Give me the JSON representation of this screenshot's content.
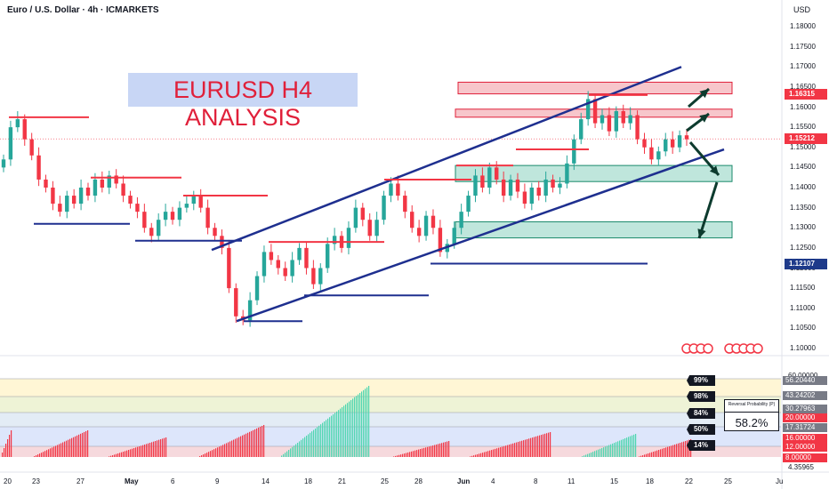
{
  "header": {
    "symbol_line": "Euro / U.S. Dollar · 4h · ICMARKETS",
    "currency": "USD"
  },
  "title": "EURUSD H4 ANALYSIS",
  "chart_data": {
    "type": "candlestick",
    "symbol": "EURUSD",
    "timeframe": "4h",
    "y_axis_ticks": [
      "1.18000",
      "1.17500",
      "1.17000",
      "1.16500",
      "1.16000",
      "1.15500",
      "1.15000",
      "1.14500",
      "1.14000",
      "1.13500",
      "1.13000",
      "1.12500",
      "1.12000",
      "1.11500",
      "1.11000",
      "1.10500",
      "1.10000"
    ],
    "ylim": [
      1.1,
      1.18
    ],
    "x_axis_ticks": [
      "20",
      "23",
      "27",
      "May",
      "6",
      "9",
      "14",
      "18",
      "21",
      "25",
      "28",
      "Jun",
      "4",
      "8",
      "11",
      "15",
      "18",
      "22",
      "25",
      "Ju"
    ],
    "price_tags": [
      {
        "value": "1.16315",
        "color": "#f23645"
      },
      {
        "value": "1.15212",
        "color": "#f23645"
      },
      {
        "value": "1.12107",
        "color": "#1e3a8a"
      }
    ],
    "close_series": [
      1.147,
      1.155,
      1.157,
      1.152,
      1.148,
      1.142,
      1.14,
      1.136,
      1.134,
      1.138,
      1.136,
      1.14,
      1.138,
      1.142,
      1.14,
      1.143,
      1.141,
      1.138,
      1.136,
      1.134,
      1.13,
      1.128,
      1.132,
      1.134,
      1.132,
      1.135,
      1.136,
      1.138,
      1.135,
      1.13,
      1.128,
      1.125,
      1.115,
      1.108,
      1.107,
      1.112,
      1.118,
      1.124,
      1.122,
      1.12,
      1.118,
      1.122,
      1.125,
      1.12,
      1.116,
      1.12,
      1.126,
      1.128,
      1.125,
      1.13,
      1.135,
      1.132,
      1.128,
      1.132,
      1.138,
      1.141,
      1.138,
      1.134,
      1.13,
      1.128,
      1.133,
      1.13,
      1.124,
      1.126,
      1.13,
      1.134,
      1.138,
      1.143,
      1.14,
      1.145,
      1.142,
      1.138,
      1.142,
      1.139,
      1.136,
      1.14,
      1.138,
      1.142,
      1.14,
      1.141,
      1.146,
      1.152,
      1.157,
      1.162,
      1.156,
      1.158,
      1.154,
      1.159,
      1.156,
      1.158,
      1.152,
      1.15,
      1.147,
      1.149,
      1.152,
      1.15,
      1.153,
      1.152
    ],
    "resistance_zones": [
      {
        "from": 1.1633,
        "to": 1.1662
      },
      {
        "from": 1.1575,
        "to": 1.1595
      }
    ],
    "support_zones": [
      {
        "from": 1.1415,
        "to": 1.1455
      },
      {
        "from": 1.1275,
        "to": 1.1315
      }
    ],
    "levels_red": [
      1.1575,
      1.1425,
      1.138,
      1.1265,
      1.142,
      1.1495,
      1.1455,
      1.163
    ],
    "levels_blue": [
      1.131,
      1.1268,
      1.1132,
      1.1068,
      1.1211
    ],
    "percent_labels": [
      "99%",
      "98%",
      "84%",
      "50%",
      "14%"
    ],
    "oscillator_tags": [
      {
        "value": "56.20440",
        "color": "#787b86"
      },
      {
        "value": "43.24202",
        "color": "#787b86"
      },
      {
        "value": "30.27963",
        "color": "#787b86"
      },
      {
        "value": "20.00000",
        "color": "#f23645"
      },
      {
        "value": "17.31724",
        "color": "#787b86"
      },
      {
        "value": "16.00000",
        "color": "#f23645"
      },
      {
        "value": "12.00000",
        "color": "#f23645"
      },
      {
        "value": "8.00000",
        "color": "#f23645"
      }
    ],
    "oscillator_top_tick": "60.00000",
    "oscillator_bottom_tick": "4.35965",
    "reversal_probability": {
      "label": "Reversal Probability (P)",
      "value": "58.2%"
    },
    "colors": {
      "bull": "#26a69a",
      "bear": "#f23645",
      "channel": "#1e2f8f",
      "resistance_fill": "#f7c6cb",
      "support_fill": "#bfe6dc"
    }
  }
}
